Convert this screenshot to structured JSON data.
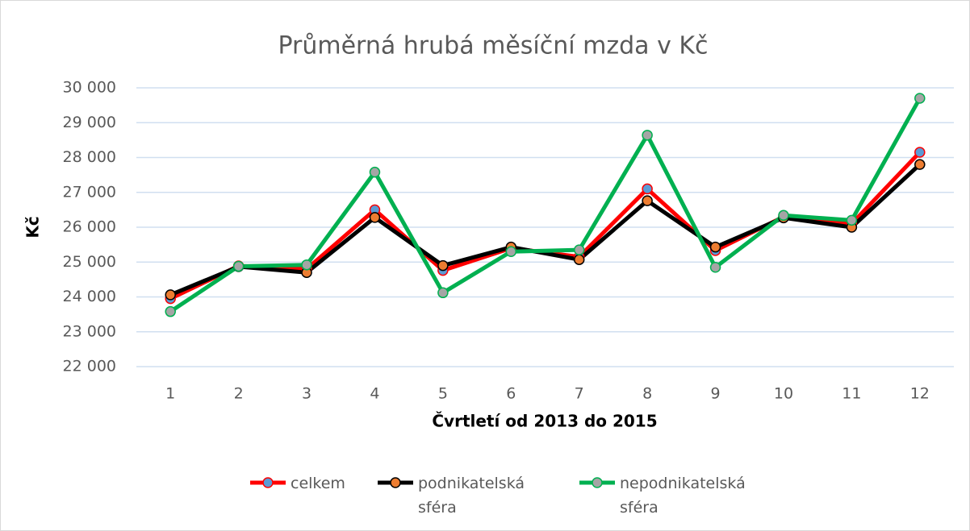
{
  "chart_data": {
    "type": "line",
    "title": "Průměrná hrubá měsíční mzda v Kč",
    "y_label": "Kč",
    "x_label": "Čvrtletí od 2013 do 2015",
    "categories": [
      "1",
      "2",
      "3",
      "4",
      "5",
      "6",
      "7",
      "8",
      "9",
      "10",
      "11",
      "12"
    ],
    "series": [
      {
        "name": "celkem",
        "color": "#ff0000",
        "marker_color": "#5b9bd5",
        "values": [
          23950,
          24890,
          24800,
          26500,
          24760,
          25400,
          25150,
          27100,
          25330,
          26300,
          26100,
          28150
        ]
      },
      {
        "name": "podnikatelská sféra",
        "color": "#000000",
        "marker_color": "#ed7d31",
        "values": [
          24060,
          24870,
          24700,
          26280,
          24900,
          25430,
          25070,
          26760,
          25430,
          26270,
          26000,
          27800
        ]
      },
      {
        "name": "nepodnikatelská sféra",
        "color": "#00b050",
        "marker_color": "#a5a5a5",
        "values": [
          23580,
          24880,
          24920,
          27580,
          24120,
          25300,
          25350,
          28640,
          24850,
          26340,
          26200,
          29700
        ]
      }
    ],
    "ylim": [
      22000,
      30000
    ],
    "yticks": [
      {
        "value": 22000,
        "label": "22 000"
      },
      {
        "value": 23000,
        "label": "23 000"
      },
      {
        "value": 24000,
        "label": "24 000"
      },
      {
        "value": 25000,
        "label": "25 000"
      },
      {
        "value": 26000,
        "label": "26 000"
      },
      {
        "value": 27000,
        "label": "27 000"
      },
      {
        "value": 28000,
        "label": "28 000"
      },
      {
        "value": 29000,
        "label": "29 000"
      },
      {
        "value": 30000,
        "label": "30 000"
      }
    ],
    "grid": true,
    "legend": "bottom"
  }
}
